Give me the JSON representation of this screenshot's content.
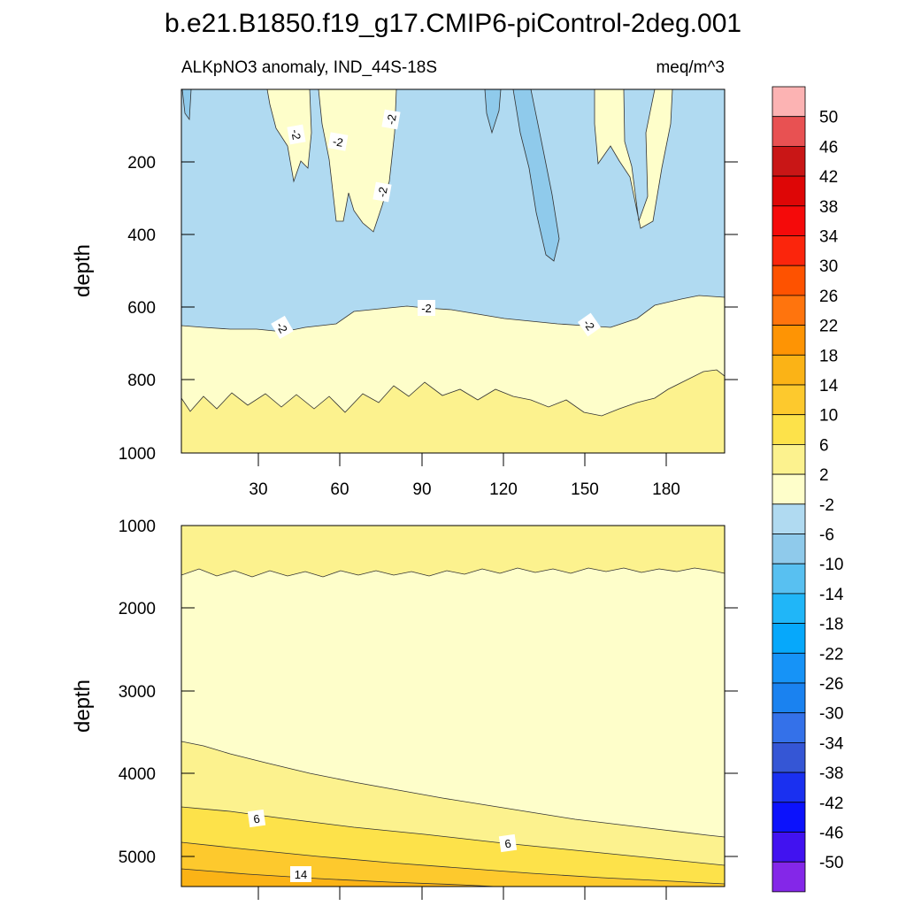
{
  "figure": {
    "title": "b.e21.B1850.f19_g17.CMIP6-piControl-2deg.001",
    "subtitle_left": "ALKpNO3 anomaly, IND_44S-18S",
    "subtitle_right": "meq/m^3"
  },
  "chart_data": [
    {
      "type": "heatmap",
      "panel": "upper",
      "xlabel": "",
      "ylabel": "depth",
      "xlim": [
        0,
        200
      ],
      "ylim": [
        0,
        1000
      ],
      "y_inverted": true,
      "x_ticks": [
        "30",
        "60",
        "90",
        "120",
        "150",
        "180"
      ],
      "y_ticks": [
        "200",
        "400",
        "600",
        "800",
        "1000"
      ],
      "contour_labels": [
        "-2",
        "-2",
        "-2",
        "-2",
        "-2",
        "-2",
        "-2",
        "-2"
      ],
      "bands": [
        {
          "range": "-6 to -2",
          "color": "#b0daf1",
          "depth_top": 0,
          "depth_bottom": 665
        },
        {
          "range": "-2 to 2",
          "color": "#fefeca",
          "depth_top": 665,
          "depth_bottom": 870
        },
        {
          "range": "2 to 6",
          "color": "#fcf28e",
          "depth_top": 870,
          "depth_bottom": 1000
        }
      ]
    },
    {
      "type": "heatmap",
      "panel": "lower",
      "xlabel": "",
      "ylabel": "depth",
      "xlim": [
        0,
        200
      ],
      "ylim": [
        1000,
        5400
      ],
      "y_inverted": true,
      "x_ticks": [],
      "y_ticks": [
        "1000",
        "2000",
        "3000",
        "4000",
        "5000"
      ],
      "contour_labels": [
        "6",
        "6",
        "14"
      ],
      "bands": [
        {
          "range": "2 to 6",
          "color": "#fcf28e",
          "depth_top": 1000,
          "depth_bottom": 1600
        },
        {
          "range": "-2 to 2",
          "color": "#fefeca",
          "depth_top": 1600,
          "depth_bottom": 4000
        },
        {
          "range": "2 to 6",
          "color": "#fcf28e",
          "depth_top": 3600,
          "depth_bottom": 5400
        },
        {
          "range": "6 to 10",
          "color": "#fde24a",
          "depth_top": 4400,
          "depth_bottom": 5400
        },
        {
          "range": "10 to 14",
          "color": "#fdc92d",
          "depth_top": 4800,
          "depth_bottom": 5400
        },
        {
          "range": "14 to 18",
          "color": "#fbb316",
          "depth_top": 5150,
          "depth_bottom": 5400
        }
      ]
    }
  ],
  "colorbar": {
    "labels": [
      "50",
      "46",
      "42",
      "38",
      "34",
      "30",
      "26",
      "22",
      "18",
      "14",
      "10",
      "6",
      "2",
      "-2",
      "-6",
      "-10",
      "-14",
      "-18",
      "-22",
      "-26",
      "-30",
      "-34",
      "-38",
      "-42",
      "-46",
      "-50"
    ],
    "colors": [
      "#fcb3b3",
      "#e85152",
      "#c91616",
      "#de0606",
      "#f50a0a",
      "#fb250c",
      "#fe5200",
      "#ff740d",
      "#fe9404",
      "#fbb316",
      "#fdc92d",
      "#fde24a",
      "#fcf28e",
      "#fefeca",
      "#b0daf1",
      "#8fcaeb",
      "#58c0f1",
      "#20b6f8",
      "#06a8fb",
      "#1693f7",
      "#1a82f0",
      "#3471e9",
      "#3556d5",
      "#1a30f0",
      "#0c12fc",
      "#4112f0",
      "#8427e8"
    ]
  }
}
